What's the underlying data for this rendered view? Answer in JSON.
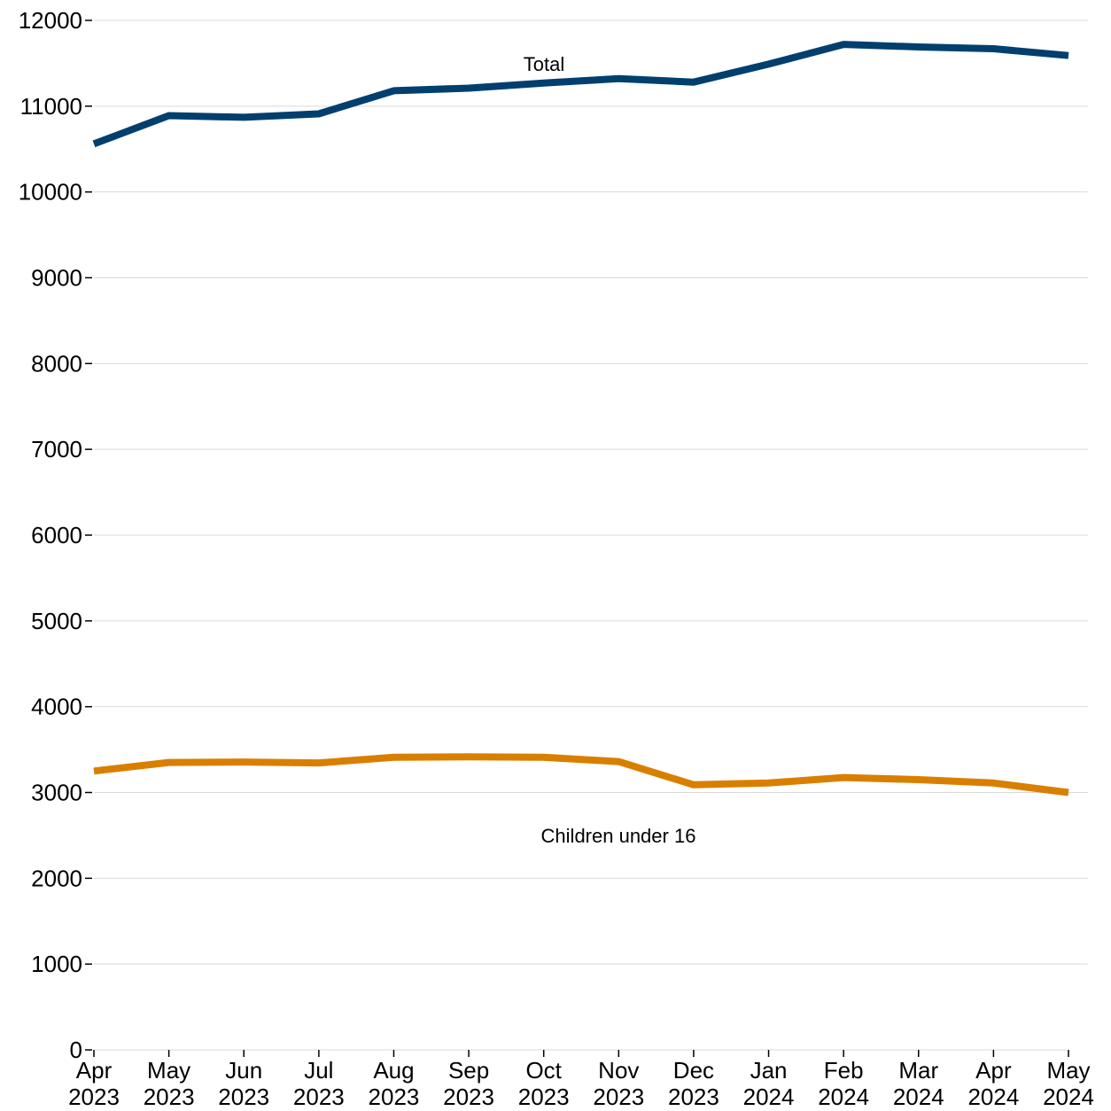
{
  "chart_data": {
    "type": "line",
    "title": "",
    "xlabel": "",
    "ylabel": "",
    "categories": [
      [
        "Apr",
        "2023"
      ],
      [
        "May",
        "2023"
      ],
      [
        "Jun",
        "2023"
      ],
      [
        "Jul",
        "2023"
      ],
      [
        "Aug",
        "2023"
      ],
      [
        "Sep",
        "2023"
      ],
      [
        "Oct",
        "2023"
      ],
      [
        "Nov",
        "2023"
      ],
      [
        "Dec",
        "2023"
      ],
      [
        "Jan",
        "2024"
      ],
      [
        "Feb",
        "2024"
      ],
      [
        "Mar",
        "2024"
      ],
      [
        "Apr",
        "2024"
      ],
      [
        "May",
        "2024"
      ]
    ],
    "ylim": [
      0,
      12000
    ],
    "yticks": [
      0,
      1000,
      2000,
      3000,
      4000,
      5000,
      6000,
      7000,
      8000,
      9000,
      10000,
      11000,
      12000
    ],
    "grid": true,
    "series": [
      {
        "name": "Total",
        "color": "#003f6e",
        "values": [
          10560,
          10890,
          10870,
          10910,
          11180,
          11210,
          11270,
          11320,
          11280,
          11490,
          11720,
          11690,
          11670,
          11590
        ]
      },
      {
        "name": "Children under 16",
        "color": "#d97f00",
        "values": [
          3250,
          3350,
          3355,
          3345,
          3410,
          3415,
          3410,
          3360,
          3090,
          3110,
          3175,
          3150,
          3110,
          3000
        ]
      }
    ]
  }
}
